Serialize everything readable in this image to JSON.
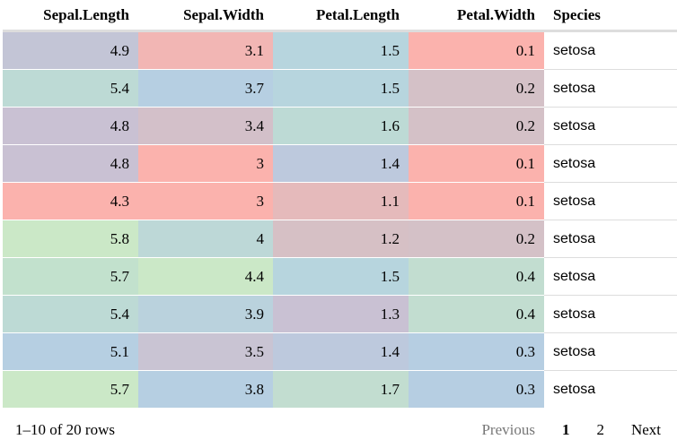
{
  "columns": [
    {
      "label": "Sepal.Length",
      "align": "num"
    },
    {
      "label": "Sepal.Width",
      "align": "num"
    },
    {
      "label": "Petal.Length",
      "align": "num"
    },
    {
      "label": "Petal.Width",
      "align": "num"
    },
    {
      "label": "Species",
      "align": "txt"
    }
  ],
  "rows": [
    {
      "cells": [
        "4.9",
        "3.1",
        "1.5",
        "0.1",
        "setosa"
      ],
      "colors": [
        "#c3c5d6",
        "#f2b6b4",
        "#b7d5de",
        "#fbb2ad"
      ]
    },
    {
      "cells": [
        "5.4",
        "3.7",
        "1.5",
        "0.2",
        "setosa"
      ],
      "colors": [
        "#bddad5",
        "#b6cfe2",
        "#b7d5de",
        "#d4c1c7"
      ]
    },
    {
      "cells": [
        "4.8",
        "3.4",
        "1.6",
        "0.2",
        "setosa"
      ],
      "colors": [
        "#c9c1d3",
        "#d3c0c9",
        "#bddad5",
        "#d4c1c7"
      ]
    },
    {
      "cells": [
        "4.8",
        "3",
        "1.4",
        "0.1",
        "setosa"
      ],
      "colors": [
        "#c9c1d3",
        "#fbb2ad",
        "#bdc9dd",
        "#fbb2ad"
      ]
    },
    {
      "cells": [
        "4.3",
        "3",
        "1.1",
        "0.1",
        "setosa"
      ],
      "colors": [
        "#fbb2ad",
        "#fbb2ad",
        "#e5babb",
        "#fbb2ad"
      ]
    },
    {
      "cells": [
        "5.8",
        "4",
        "1.2",
        "0.2",
        "setosa"
      ],
      "colors": [
        "#cbe8c7",
        "#bdd8d7",
        "#d6c0c5",
        "#d4c1c7"
      ]
    },
    {
      "cells": [
        "5.7",
        "4.4",
        "1.5",
        "0.4",
        "setosa"
      ],
      "colors": [
        "#c2e1cd",
        "#cbe8c7",
        "#b7d5de",
        "#c2ddd0"
      ]
    },
    {
      "cells": [
        "5.4",
        "3.9",
        "1.3",
        "0.4",
        "setosa"
      ],
      "colors": [
        "#bddad5",
        "#bad2dd",
        "#c9c1d3",
        "#c2ddd0"
      ]
    },
    {
      "cells": [
        "5.1",
        "3.5",
        "1.4",
        "0.3",
        "setosa"
      ],
      "colors": [
        "#b6cfe2",
        "#c9c4d3",
        "#bdc9dd",
        "#b6cee2"
      ]
    },
    {
      "cells": [
        "5.7",
        "3.8",
        "1.7",
        "0.3",
        "setosa"
      ],
      "colors": [
        "#cbe8c7",
        "#b6cfe2",
        "#c2ddd0",
        "#b6cee2"
      ]
    }
  ],
  "footer": {
    "info": "1–10 of 20 rows",
    "previous": "Previous",
    "pages": [
      "1",
      "2"
    ],
    "current_page": "1",
    "next": "Next"
  }
}
